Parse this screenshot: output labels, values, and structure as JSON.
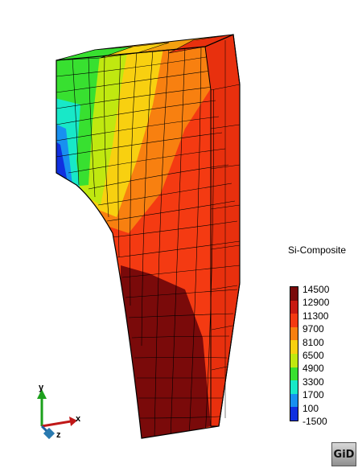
{
  "legend": {
    "title": "Si-Composite",
    "labels": [
      "14500",
      "12900",
      "11300",
      "9700",
      "8100",
      "6500",
      "4900",
      "3300",
      "1700",
      "100",
      "-1500"
    ],
    "colors": [
      "#7a0a0a",
      "#c81a12",
      "#f43a12",
      "#f88010",
      "#f8d010",
      "#c0e810",
      "#38e030",
      "#18e8c8",
      "#1890f0",
      "#1030e0",
      "#000090"
    ]
  },
  "axes": {
    "x": "x",
    "y": "y",
    "z": "z"
  },
  "logo": "GiD"
}
